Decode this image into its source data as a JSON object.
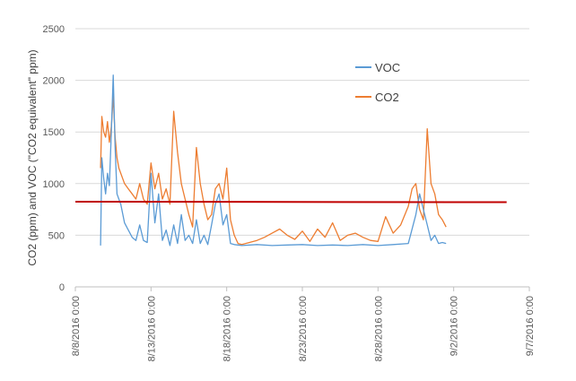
{
  "chart_data": {
    "type": "line",
    "title": "",
    "xlabel": "",
    "ylabel": "CO2 (ppm) and VOC (\"CO2 equivalent\" ppm)",
    "ylim": [
      0,
      2500
    ],
    "yticks": [
      0,
      500,
      1000,
      1500,
      2000,
      2500
    ],
    "xlim": [
      "2016-08-08",
      "2016-09-07"
    ],
    "xticks": [
      "2016-08-08",
      "2016-08-13",
      "2016-08-18",
      "2016-08-23",
      "2016-08-28",
      "2016-09-02",
      "2016-09-07"
    ],
    "xtick_labels": [
      "8/8/2016 0:00",
      "8/13/2016 0:00",
      "8/18/2016 0:00",
      "8/23/2016 0:00",
      "8/28/2016 0:00",
      "9/2/2016 0:00",
      "9/7/2016 0:00"
    ],
    "grid": "horizontal",
    "legend": "top-right",
    "series": [
      {
        "name": "VOC",
        "color": "#5b9bd5",
        "x": [
          "2016-08-09 16:00",
          "2016-08-09 18:00",
          "2016-08-09 21:00",
          "2016-08-10 00:00",
          "2016-08-10 03:00",
          "2016-08-10 06:00",
          "2016-08-10 09:00",
          "2016-08-10 12:00",
          "2016-08-10 15:00",
          "2016-08-10 18:00",
          "2016-08-10 21:00",
          "2016-08-11 00:00",
          "2016-08-11 06:00",
          "2016-08-11 12:00",
          "2016-08-11 18:00",
          "2016-08-12 00:00",
          "2016-08-12 06:00",
          "2016-08-12 12:00",
          "2016-08-12 18:00",
          "2016-08-13 00:00",
          "2016-08-13 06:00",
          "2016-08-13 12:00",
          "2016-08-13 18:00",
          "2016-08-14 00:00",
          "2016-08-14 06:00",
          "2016-08-14 12:00",
          "2016-08-14 18:00",
          "2016-08-15 00:00",
          "2016-08-15 06:00",
          "2016-08-15 12:00",
          "2016-08-15 18:00",
          "2016-08-16 00:00",
          "2016-08-16 06:00",
          "2016-08-16 12:00",
          "2016-08-16 18:00",
          "2016-08-17 00:00",
          "2016-08-17 06:00",
          "2016-08-17 12:00",
          "2016-08-17 18:00",
          "2016-08-18 00:00",
          "2016-08-18 06:00",
          "2016-08-18 12:00",
          "2016-08-19 00:00",
          "2016-08-20 00:00",
          "2016-08-21 00:00",
          "2016-08-22 00:00",
          "2016-08-23 00:00",
          "2016-08-24 00:00",
          "2016-08-25 00:00",
          "2016-08-26 00:00",
          "2016-08-27 00:00",
          "2016-08-28 00:00",
          "2016-08-29 00:00",
          "2016-08-30 00:00",
          "2016-08-30 12:00",
          "2016-08-30 18:00",
          "2016-08-31 00:00",
          "2016-08-31 06:00",
          "2016-08-31 12:00",
          "2016-08-31 18:00",
          "2016-09-01 00:00",
          "2016-09-01 06:00",
          "2016-09-01 12:00"
        ],
        "y": [
          400,
          1250,
          1050,
          900,
          1100,
          980,
          1500,
          2050,
          1350,
          900,
          850,
          800,
          620,
          550,
          480,
          450,
          600,
          450,
          430,
          1100,
          620,
          900,
          450,
          550,
          400,
          600,
          420,
          700,
          450,
          500,
          420,
          650,
          420,
          500,
          410,
          600,
          800,
          900,
          600,
          700,
          420,
          410,
          400,
          410,
          400,
          405,
          410,
          400,
          405,
          400,
          410,
          400,
          410,
          420,
          700,
          900,
          750,
          600,
          450,
          500,
          420,
          430,
          420
        ]
      },
      {
        "name": "CO2",
        "color": "#ed7d31",
        "x": [
          "2016-08-09 16:00",
          "2016-08-09 18:00",
          "2016-08-09 21:00",
          "2016-08-10 00:00",
          "2016-08-10 03:00",
          "2016-08-10 06:00",
          "2016-08-10 09:00",
          "2016-08-10 12:00",
          "2016-08-10 15:00",
          "2016-08-10 18:00",
          "2016-08-10 21:00",
          "2016-08-11 00:00",
          "2016-08-11 06:00",
          "2016-08-11 12:00",
          "2016-08-11 18:00",
          "2016-08-12 00:00",
          "2016-08-12 06:00",
          "2016-08-12 12:00",
          "2016-08-12 18:00",
          "2016-08-13 00:00",
          "2016-08-13 06:00",
          "2016-08-13 12:00",
          "2016-08-13 18:00",
          "2016-08-14 00:00",
          "2016-08-14 06:00",
          "2016-08-14 12:00",
          "2016-08-14 18:00",
          "2016-08-15 00:00",
          "2016-08-15 06:00",
          "2016-08-15 12:00",
          "2016-08-15 18:00",
          "2016-08-16 00:00",
          "2016-08-16 06:00",
          "2016-08-16 12:00",
          "2016-08-16 18:00",
          "2016-08-17 00:00",
          "2016-08-17 06:00",
          "2016-08-17 12:00",
          "2016-08-17 18:00",
          "2016-08-18 00:00",
          "2016-08-18 06:00",
          "2016-08-18 12:00",
          "2016-08-18 18:00",
          "2016-08-19 00:00",
          "2016-08-19 12:00",
          "2016-08-20 00:00",
          "2016-08-20 12:00",
          "2016-08-21 00:00",
          "2016-08-21 12:00",
          "2016-08-22 00:00",
          "2016-08-22 12:00",
          "2016-08-23 00:00",
          "2016-08-23 12:00",
          "2016-08-24 00:00",
          "2016-08-24 12:00",
          "2016-08-25 00:00",
          "2016-08-25 12:00",
          "2016-08-26 00:00",
          "2016-08-26 12:00",
          "2016-08-27 00:00",
          "2016-08-27 12:00",
          "2016-08-28 00:00",
          "2016-08-28 12:00",
          "2016-08-29 00:00",
          "2016-08-29 12:00",
          "2016-08-30 00:00",
          "2016-08-30 06:00",
          "2016-08-30 12:00",
          "2016-08-30 18:00",
          "2016-08-31 00:00",
          "2016-08-31 06:00",
          "2016-08-31 12:00",
          "2016-08-31 18:00",
          "2016-09-01 00:00",
          "2016-09-01 06:00",
          "2016-09-01 12:00"
        ],
        "y": [
          1150,
          1650,
          1500,
          1450,
          1600,
          1400,
          1550,
          1850,
          1450,
          1250,
          1150,
          1100,
          1000,
          950,
          900,
          850,
          1000,
          850,
          800,
          1200,
          950,
          1100,
          850,
          950,
          800,
          1700,
          1300,
          1000,
          850,
          700,
          580,
          1350,
          1000,
          800,
          650,
          700,
          950,
          1000,
          850,
          1150,
          650,
          500,
          420,
          410,
          430,
          450,
          480,
          520,
          560,
          500,
          460,
          540,
          440,
          560,
          480,
          620,
          450,
          500,
          520,
          480,
          450,
          440,
          680,
          520,
          600,
          780,
          950,
          1000,
          750,
          650,
          1530,
          1000,
          900,
          700,
          650,
          580
        ]
      }
    ],
    "reference_line": {
      "y": 825,
      "y_end": 820,
      "x_start": "2016-08-08",
      "x_end": "2016-09-05 12:00",
      "color": "#c00000"
    }
  }
}
